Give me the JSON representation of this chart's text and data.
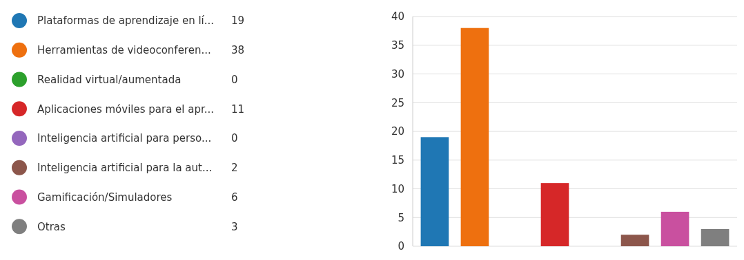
{
  "chart_data": {
    "type": "bar",
    "categories": [
      null,
      null,
      null,
      null,
      null,
      null,
      null,
      null
    ],
    "series": [
      {
        "name": "Plataformas de aprendizaje en lí...",
        "color": "#1f77b4",
        "values": [
          19,
          null,
          null,
          null,
          null,
          null,
          null,
          null
        ]
      },
      {
        "name": "Herramientas de videoconferen...",
        "color": "#ee700f",
        "values": [
          null,
          38,
          null,
          null,
          null,
          null,
          null,
          null
        ]
      },
      {
        "name": "Realidad virtual/aumentada",
        "color": "#2ca02c",
        "values": [
          null,
          null,
          0,
          null,
          null,
          null,
          null,
          null
        ]
      },
      {
        "name": "Aplicaciones móviles para el apr...",
        "color": "#d62728",
        "values": [
          null,
          null,
          null,
          11,
          null,
          null,
          null,
          null
        ]
      },
      {
        "name": "Inteligencia artificial para perso...",
        "color": "#9467bd",
        "values": [
          null,
          null,
          null,
          null,
          0,
          null,
          null,
          null
        ]
      },
      {
        "name": "Inteligencia artificial para la aut...",
        "color": "#8c564b",
        "values": [
          null,
          null,
          null,
          null,
          null,
          2,
          null,
          null
        ]
      },
      {
        "name": "Gamificación/Simuladores",
        "color": "#c9509f",
        "values": [
          null,
          null,
          null,
          null,
          null,
          null,
          6,
          null
        ]
      },
      {
        "name": "Otras",
        "color": "#7f7f7f",
        "values": [
          null,
          null,
          null,
          null,
          null,
          null,
          null,
          3
        ]
      }
    ],
    "annotations": [
      "19",
      "38",
      "0",
      "11",
      "0",
      "2",
      "6",
      "3"
    ],
    "ylim": [
      0,
      40
    ],
    "yticks": [
      0,
      5,
      10,
      15,
      20,
      25,
      30,
      35,
      40
    ],
    "grid": "y",
    "legend": "left",
    "tick_labels": "y"
  }
}
